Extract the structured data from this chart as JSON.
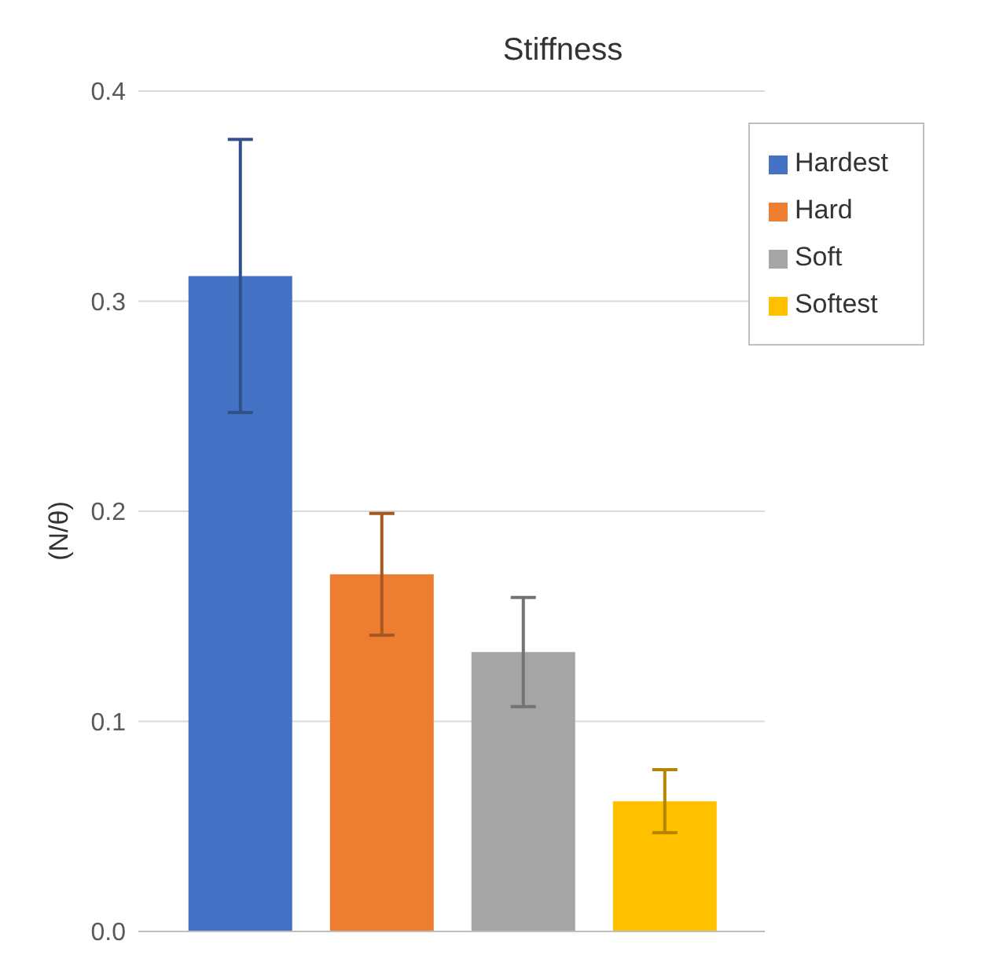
{
  "chart_data": {
    "type": "bar",
    "title": "Stiffness",
    "ylabel": "(N/θ)",
    "categories": [
      null
    ],
    "series": [
      {
        "name": "Hardest",
        "color": "#4472c4",
        "values": [
          0.312
        ],
        "errors": [
          0.065
        ]
      },
      {
        "name": "Hard",
        "color": "#ed7d31",
        "values": [
          0.17
        ],
        "errors": [
          0.029
        ]
      },
      {
        "name": "Soft",
        "color": "#a5a5a5",
        "values": [
          0.133
        ],
        "errors": [
          0.026
        ]
      },
      {
        "name": "Softest",
        "color": "#ffc000",
        "values": [
          0.062
        ],
        "errors": [
          0.015
        ]
      }
    ],
    "ylim": [
      0,
      0.4
    ],
    "yticks": [
      {
        "value": 0,
        "label": "0.0"
      },
      0.1,
      0.2,
      0.3,
      0.4
    ],
    "grid": "y",
    "legend": "top right"
  }
}
